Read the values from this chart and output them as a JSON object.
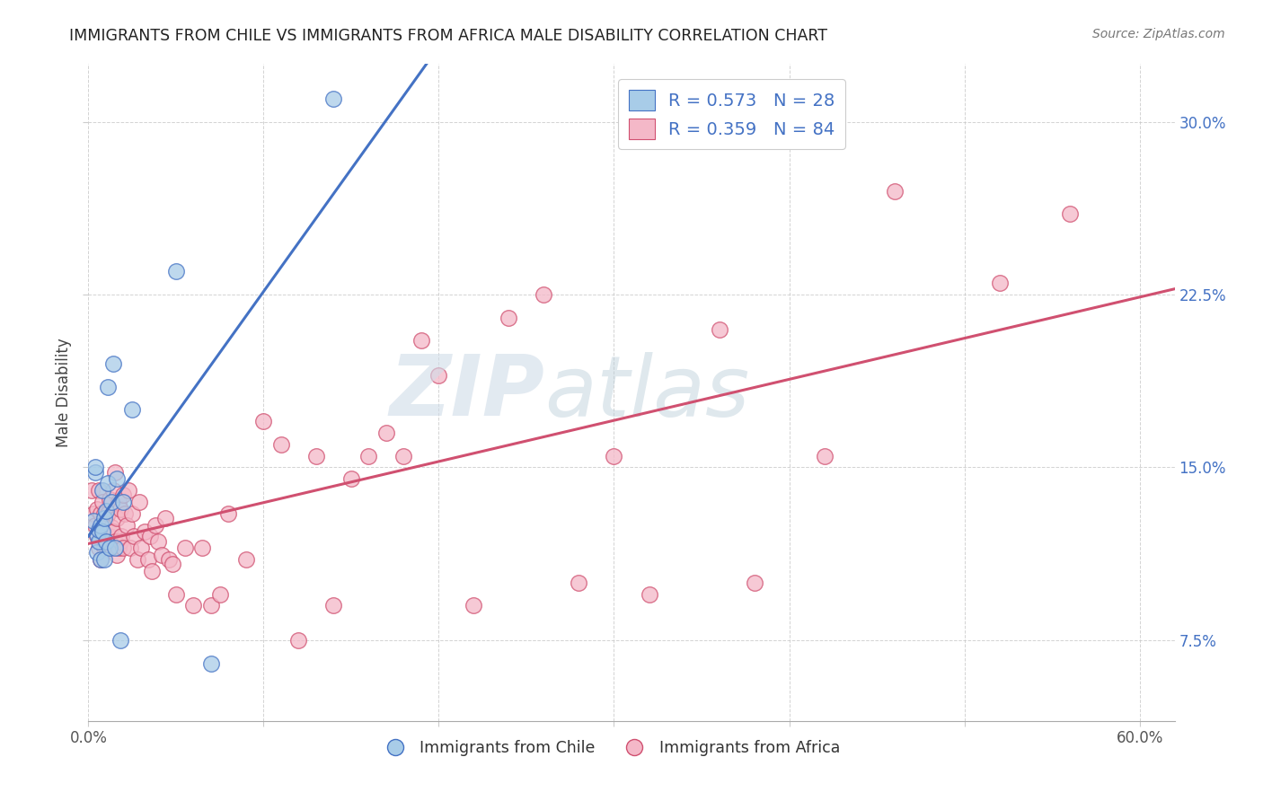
{
  "title": "IMMIGRANTS FROM CHILE VS IMMIGRANTS FROM AFRICA MALE DISABILITY CORRELATION CHART",
  "source": "Source: ZipAtlas.com",
  "ylabel": "Male Disability",
  "xlim": [
    0.0,
    0.62
  ],
  "ylim": [
    0.04,
    0.325
  ],
  "chile_color": "#a8cce8",
  "africa_color": "#f4b8c8",
  "chile_line_color": "#4472c4",
  "africa_line_color": "#d05070",
  "grid_color": "#c8c8c8",
  "background_color": "#ffffff",
  "legend_R_chile": "0.573",
  "legend_N_chile": "28",
  "legend_R_africa": "0.359",
  "legend_N_africa": "84",
  "watermark_zip": "ZIP",
  "watermark_atlas": "atlas",
  "legend_text_color": "#4472c4",
  "right_tick_color": "#4472c4",
  "chile_scatter_x": [
    0.003,
    0.004,
    0.004,
    0.005,
    0.005,
    0.006,
    0.006,
    0.007,
    0.007,
    0.008,
    0.008,
    0.009,
    0.009,
    0.01,
    0.01,
    0.011,
    0.011,
    0.012,
    0.013,
    0.014,
    0.015,
    0.016,
    0.018,
    0.02,
    0.025,
    0.05,
    0.07,
    0.14
  ],
  "chile_scatter_y": [
    0.127,
    0.148,
    0.15,
    0.113,
    0.121,
    0.118,
    0.123,
    0.125,
    0.11,
    0.122,
    0.14,
    0.128,
    0.11,
    0.118,
    0.131,
    0.185,
    0.143,
    0.115,
    0.135,
    0.195,
    0.115,
    0.145,
    0.075,
    0.135,
    0.175,
    0.235,
    0.065,
    0.31
  ],
  "africa_scatter_x": [
    0.002,
    0.003,
    0.004,
    0.005,
    0.005,
    0.006,
    0.006,
    0.007,
    0.007,
    0.008,
    0.008,
    0.009,
    0.009,
    0.01,
    0.01,
    0.011,
    0.011,
    0.012,
    0.012,
    0.013,
    0.013,
    0.014,
    0.014,
    0.015,
    0.015,
    0.016,
    0.016,
    0.017,
    0.017,
    0.018,
    0.018,
    0.019,
    0.02,
    0.02,
    0.021,
    0.022,
    0.023,
    0.024,
    0.025,
    0.026,
    0.028,
    0.029,
    0.03,
    0.032,
    0.034,
    0.035,
    0.036,
    0.038,
    0.04,
    0.042,
    0.044,
    0.046,
    0.048,
    0.05,
    0.055,
    0.06,
    0.065,
    0.07,
    0.075,
    0.08,
    0.09,
    0.1,
    0.11,
    0.12,
    0.13,
    0.14,
    0.15,
    0.16,
    0.17,
    0.18,
    0.19,
    0.2,
    0.22,
    0.24,
    0.26,
    0.28,
    0.3,
    0.32,
    0.36,
    0.38,
    0.42,
    0.46,
    0.52,
    0.56
  ],
  "africa_scatter_y": [
    0.14,
    0.13,
    0.125,
    0.12,
    0.132,
    0.115,
    0.14,
    0.11,
    0.13,
    0.12,
    0.135,
    0.115,
    0.13,
    0.12,
    0.128,
    0.118,
    0.13,
    0.12,
    0.136,
    0.124,
    0.115,
    0.122,
    0.14,
    0.148,
    0.118,
    0.128,
    0.112,
    0.135,
    0.115,
    0.132,
    0.118,
    0.12,
    0.138,
    0.115,
    0.13,
    0.125,
    0.14,
    0.115,
    0.13,
    0.12,
    0.11,
    0.135,
    0.115,
    0.122,
    0.11,
    0.12,
    0.105,
    0.125,
    0.118,
    0.112,
    0.128,
    0.11,
    0.108,
    0.095,
    0.115,
    0.09,
    0.115,
    0.09,
    0.095,
    0.13,
    0.11,
    0.17,
    0.16,
    0.075,
    0.155,
    0.09,
    0.145,
    0.155,
    0.165,
    0.155,
    0.205,
    0.19,
    0.09,
    0.215,
    0.225,
    0.1,
    0.155,
    0.095,
    0.21,
    0.1,
    0.155,
    0.27,
    0.23,
    0.26
  ]
}
